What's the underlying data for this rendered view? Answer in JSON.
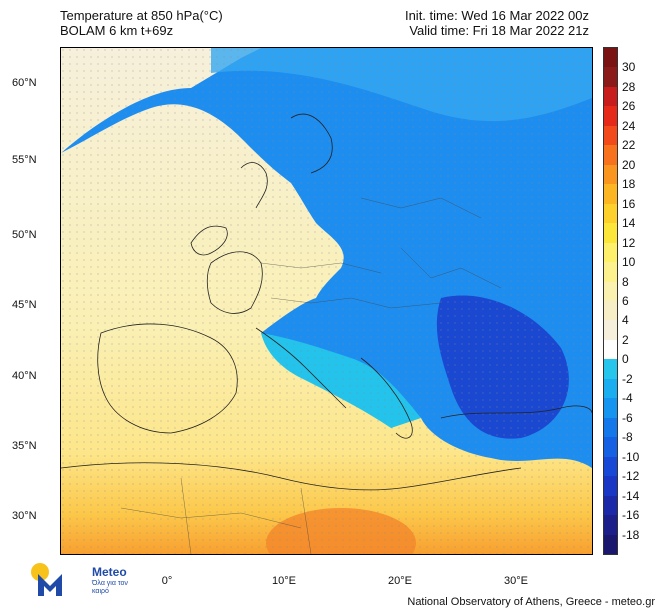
{
  "header": {
    "title_line1": "Temperature at 850 hPa(°C)",
    "title_line2": "BOLAM 6 km t+69z",
    "init_time": "Init. time: Wed 16 Mar 2022 00z",
    "valid_time": "Valid time: Fri 18 Mar 2022 21z"
  },
  "axes": {
    "lat_labels": [
      "60°N",
      "55°N",
      "50°N",
      "45°N",
      "40°N",
      "35°N",
      "30°N"
    ],
    "lon_labels": [
      "0°",
      "10°E",
      "20°E",
      "30°E"
    ]
  },
  "colorbar": {
    "labels": [
      "30",
      "28",
      "26",
      "24",
      "22",
      "20",
      "18",
      "16",
      "14",
      "12",
      "10",
      "8",
      "6",
      "4",
      "2",
      "0",
      "-2",
      "-4",
      "-6",
      "-8",
      "-10",
      "-12",
      "-14",
      "-16",
      "-18"
    ],
    "colors": [
      "#8b1a1a",
      "#c81d1d",
      "#e62a1a",
      "#f24a1a",
      "#f8711c",
      "#fa961f",
      "#fcb523",
      "#fdd02c",
      "#fde63a",
      "#fef06a",
      "#fdf18e",
      "#faf0b0",
      "#f7eec8",
      "#f5efdc",
      "#ffffff",
      "#26c5ec",
      "#1aaef0",
      "#1595ef",
      "#1478ea",
      "#1660e3",
      "#1748d6",
      "#1936c4",
      "#1b29a8",
      "#1c1f8a",
      "#1a176e"
    ]
  },
  "logo": {
    "name": "Meteo",
    "tagline": "Όλα για τον καιρό",
    "icon": "meteo-logo-icon"
  },
  "credit": "National Observatory of Athens, Greece - meteo.gr"
}
